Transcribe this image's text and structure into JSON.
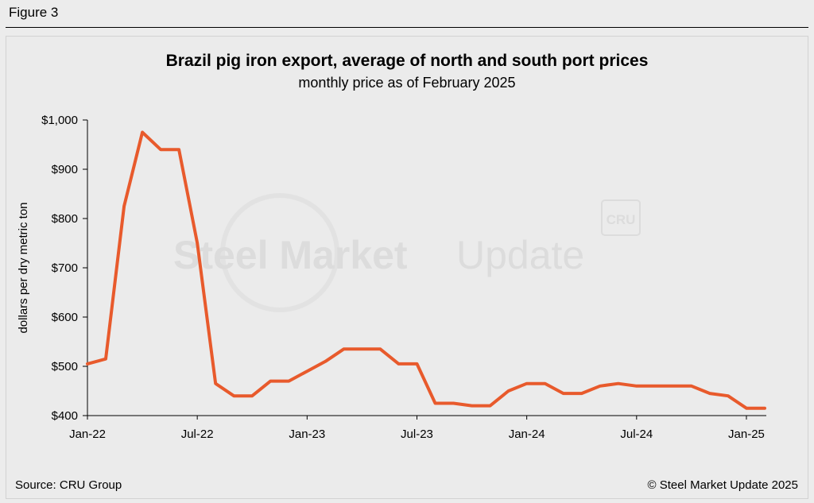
{
  "figure_label": "Figure 3",
  "source": "Source: CRU Group",
  "copyright": "© Steel Market Update 2025",
  "watermark": {
    "text_bold": "Steel Market",
    "text_light": "Update",
    "badge": "CRU"
  },
  "colors": {
    "line": "#e85a2c",
    "background": "#ececec",
    "axis": "#000000",
    "watermark": "#dcdcdc"
  },
  "chart_data": {
    "type": "line",
    "title": "Brazil pig iron export, average of north and south port prices",
    "subtitle": "monthly price as of February 2025",
    "xlabel": "",
    "ylabel": "dollars per dry metric ton",
    "ylim": [
      400,
      1000
    ],
    "yticks": [
      1000,
      900,
      800,
      700,
      600,
      500,
      400
    ],
    "ytick_labels": [
      "$1,000",
      "$900",
      "$800",
      "$700",
      "$600",
      "$500",
      "$400"
    ],
    "x": [
      "Jan-22",
      "Feb-22",
      "Mar-22",
      "Apr-22",
      "May-22",
      "Jun-22",
      "Jul-22",
      "Aug-22",
      "Sep-22",
      "Oct-22",
      "Nov-22",
      "Dec-22",
      "Jan-23",
      "Feb-23",
      "Mar-23",
      "Apr-23",
      "May-23",
      "Jun-23",
      "Jul-23",
      "Aug-23",
      "Sep-23",
      "Oct-23",
      "Nov-23",
      "Dec-23",
      "Jan-24",
      "Feb-24",
      "Mar-24",
      "Apr-24",
      "May-24",
      "Jun-24",
      "Jul-24",
      "Aug-24",
      "Sep-24",
      "Oct-24",
      "Nov-24",
      "Dec-24",
      "Jan-25",
      "Feb-25"
    ],
    "xtick_labels": [
      {
        "index": 0,
        "label": "Jan-22"
      },
      {
        "index": 6,
        "label": "Jul-22"
      },
      {
        "index": 12,
        "label": "Jan-23"
      },
      {
        "index": 18,
        "label": "Jul-23"
      },
      {
        "index": 24,
        "label": "Jan-24"
      },
      {
        "index": 30,
        "label": "Jul-24"
      },
      {
        "index": 36,
        "label": "Jan-25"
      }
    ],
    "series": [
      {
        "values": [
          505,
          515,
          825,
          975,
          940,
          940,
          750,
          465,
          440,
          440,
          470,
          470,
          490,
          510,
          535,
          535,
          535,
          505,
          505,
          425,
          425,
          420,
          420,
          450,
          465,
          465,
          445,
          445,
          460,
          465,
          460,
          460,
          460,
          460,
          445,
          440,
          415,
          415
        ]
      }
    ],
    "grid": false,
    "legend": "none"
  }
}
